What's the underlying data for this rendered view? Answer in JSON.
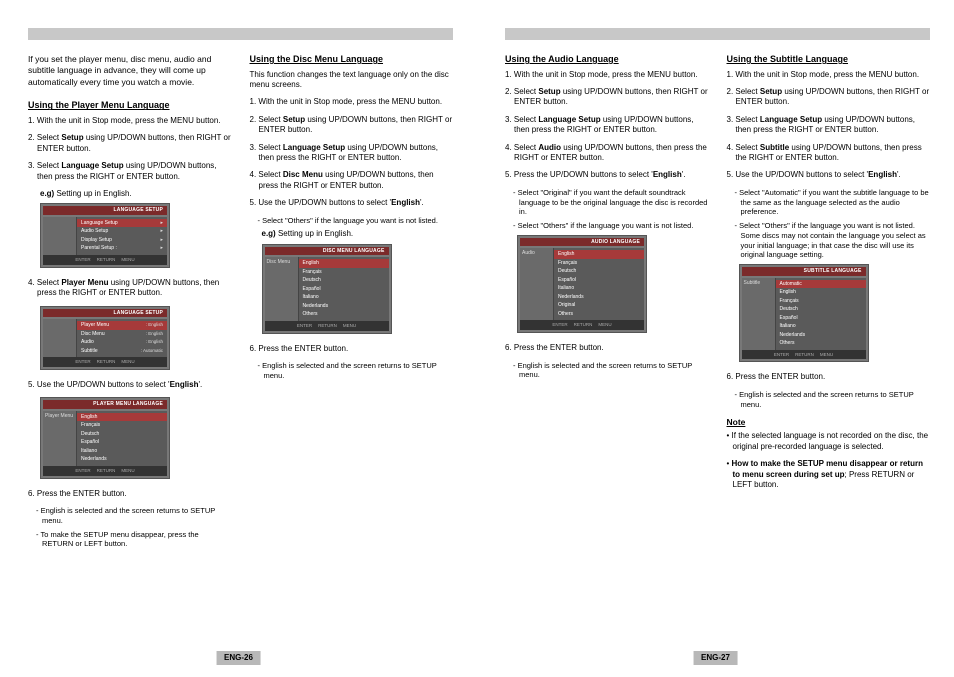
{
  "topbar_color": "#c8c8c8",
  "page_left_num": "ENG-26",
  "page_right_num": "ENG-27",
  "intro": "If you set the player menu, disc menu, audio and subtitle language in advance, they will come up automatically every time you watch a movie.",
  "sec1": {
    "title": "Using the Player Menu Language",
    "s1": "1. With the unit in Stop mode, press the MENU button.",
    "s2a": "2. Select ",
    "s2b": "Setup",
    "s2c": " using UP/DOWN buttons, then RIGHT or ENTER button.",
    "s3a": "3. Select ",
    "s3b": "Language Setup",
    "s3c": " using UP/DOWN buttons, then press the RIGHT or ENTER button.",
    "eg1a": "e.g)",
    "eg1b": " Setting up in English.",
    "osd1": {
      "header": "LANGUAGE SETUP",
      "left": "",
      "rows": [
        {
          "lbl": "Language Setup",
          "hi": true,
          "arrow": "▸"
        },
        {
          "lbl": "Audio Setup",
          "arrow": "▸"
        },
        {
          "lbl": "Display Setup",
          "arrow": "▸"
        },
        {
          "lbl": "Parental Setup :",
          "arrow": "▸"
        }
      ],
      "footer": [
        "ENTER",
        "RETURN",
        "MENU"
      ]
    },
    "s4a": "4. Select ",
    "s4b": "Player Menu",
    "s4c": " using UP/DOWN buttons, then press the RIGHT or ENTER button.",
    "osd2": {
      "header": "LANGUAGE SETUP",
      "left": "",
      "rows": [
        {
          "lbl": "Player Menu",
          "val": ": English",
          "hi": true
        },
        {
          "lbl": "Disc Menu",
          "val": ": English"
        },
        {
          "lbl": "Audio",
          "val": ": English"
        },
        {
          "lbl": "Subtitle",
          "val": ": Automatic"
        }
      ],
      "footer": [
        "ENTER",
        "RETURN",
        "MENU"
      ]
    },
    "s5a": "5. Use the UP/DOWN buttons to select '",
    "s5b": "English",
    "s5c": "'.",
    "osd3": {
      "header": "PLAYER MENU LANGUAGE",
      "left_label": "Player Menu",
      "rows": [
        {
          "lbl": "English",
          "hi": true
        },
        {
          "lbl": "Français"
        },
        {
          "lbl": "Deutsch"
        },
        {
          "lbl": "Español"
        },
        {
          "lbl": "Italiano"
        },
        {
          "lbl": "Nederlands"
        }
      ],
      "footer": [
        "ENTER",
        "RETURN",
        "MENU"
      ]
    },
    "s6": "6. Press the ENTER button.",
    "s6sub1": "- English is selected and the screen returns to SETUP menu.",
    "s6sub2": "- To make the SETUP menu disappear, press the RETURN or LEFT button."
  },
  "sec2": {
    "title": "Using the Disc Menu Language",
    "lead": "This function changes the text language only on the disc menu screens.",
    "s1": "1. With the unit in Stop mode, press the MENU button.",
    "s2a": "2. Select ",
    "s2b": "Setup",
    "s2c": " using UP/DOWN buttons, then RIGHT or ENTER button.",
    "s3a": "3. Select ",
    "s3b": "Language Setup",
    "s3c": " using UP/DOWN buttons, then press the RIGHT or ENTER button.",
    "s4a": "4. Select ",
    "s4b": "Disc Menu",
    "s4c": " using UP/DOWN buttons, then press the RIGHT or ENTER button.",
    "s5a": "5. Use the UP/DOWN buttons to select '",
    "s5b": "English",
    "s5c": "'.",
    "s5sub": "- Select \"Others\" if the language you want is not listed.",
    "eg1a": "e.g)",
    "eg1b": " Setting up in English.",
    "osd": {
      "header": "DISC MENU LANGUAGE",
      "left_label": "Disc Menu",
      "rows": [
        {
          "lbl": "English",
          "hi": true
        },
        {
          "lbl": "Français"
        },
        {
          "lbl": "Deutsch"
        },
        {
          "lbl": "Español"
        },
        {
          "lbl": "Italiano"
        },
        {
          "lbl": "Nederlands"
        },
        {
          "lbl": "Others"
        }
      ],
      "footer": [
        "ENTER",
        "RETURN",
        "MENU"
      ]
    },
    "s6": "6. Press the ENTER button.",
    "s6sub": "- English is selected and the screen returns to SETUP menu."
  },
  "sec3": {
    "title": "Using the Audio Language",
    "s1": "1. With the unit in Stop mode, press the MENU button.",
    "s2a": "2. Select ",
    "s2b": "Setup",
    "s2c": " using UP/DOWN buttons, then RIGHT or ENTER button.",
    "s3a": "3. Select ",
    "s3b": "Language Setup",
    "s3c": " using UP/DOWN buttons, then press the RIGHT or ENTER button.",
    "s4a": "4. Select ",
    "s4b": "Audio",
    "s4c": " using UP/DOWN buttons, then press the RIGHT or ENTER button.",
    "s5a": "5. Press the UP/DOWN buttons to select '",
    "s5b": "English",
    "s5c": "'.",
    "s5sub1": "- Select \"Original\" if you want the default soundtrack language to be the original language the disc is recorded in.",
    "s5sub2": "- Select \"Others\" if the language you want is not listed.",
    "osd": {
      "header": "AUDIO LANGUAGE",
      "left_label": "Audio",
      "rows": [
        {
          "lbl": "English",
          "hi": true
        },
        {
          "lbl": "Français"
        },
        {
          "lbl": "Deutsch"
        },
        {
          "lbl": "Español"
        },
        {
          "lbl": "Italiano"
        },
        {
          "lbl": "Nederlands"
        },
        {
          "lbl": "Original"
        },
        {
          "lbl": "Others"
        }
      ],
      "footer": [
        "ENTER",
        "RETURN",
        "MENU"
      ]
    },
    "s6": "6. Press the ENTER button.",
    "s6sub": "- English is selected and the screen returns to SETUP menu."
  },
  "sec4": {
    "title": "Using the Subtitle Language",
    "s1": "1. With the unit in Stop mode, press the MENU button.",
    "s2a": "2. Select ",
    "s2b": "Setup",
    "s2c": " using UP/DOWN buttons, then RIGHT or ENTER button.",
    "s3a": "3. Select ",
    "s3b": "Language Setup",
    "s3c": " using UP/DOWN buttons, then press the RIGHT or ENTER button.",
    "s4a": "4. Select ",
    "s4b": "Subtitle",
    "s4c": " using UP/DOWN buttons, then press the RIGHT or ENTER button.",
    "s5a": "5. Use the UP/DOWN buttons to select '",
    "s5b": "English",
    "s5c": "'.",
    "s5sub1": "- Select \"Automatic\" if you want the subtitle language to be the same as the language selected as the audio preference.",
    "s5sub2": "- Select \"Others\" if the language you want is not listed. Some discs may not contain the language you select as your initial language; in that case the disc will use its original language setting.",
    "osd": {
      "header": "SUBTITLE LANGUAGE",
      "left_label": "Subtitle",
      "rows": [
        {
          "lbl": "Automatic",
          "hi": true
        },
        {
          "lbl": "English"
        },
        {
          "lbl": "Français"
        },
        {
          "lbl": "Deutsch"
        },
        {
          "lbl": "Español"
        },
        {
          "lbl": "Italiano"
        },
        {
          "lbl": "Nederlands"
        },
        {
          "lbl": "Others"
        }
      ],
      "footer": [
        "ENTER",
        "RETURN",
        "MENU"
      ]
    },
    "s6": "6. Press the ENTER button.",
    "s6sub": "- English is selected and the screen returns to SETUP menu.",
    "note_hdr": "Note",
    "note1": "• If the selected language is not recorded on the disc, the original pre-recorded language is selected.",
    "note2a": "• ",
    "note2b": "How to make the SETUP menu disappear or return to menu screen during set up",
    "note2c": "; Press RETURN or LEFT button."
  }
}
